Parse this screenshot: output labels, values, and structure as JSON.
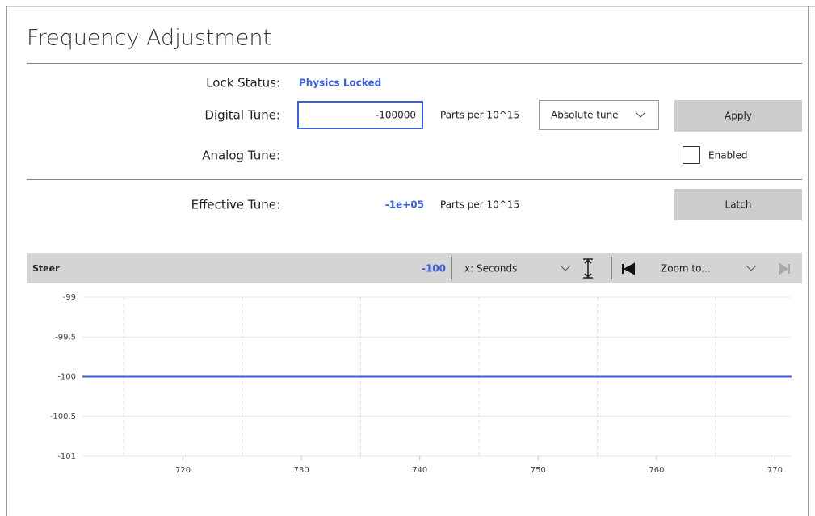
{
  "header": {
    "title": "Frequency Adjustment"
  },
  "form": {
    "lock_status": {
      "label": "Lock Status:",
      "value": "Physics Locked"
    },
    "digital_tune": {
      "label": "Digital Tune:",
      "input": "-100000",
      "unit": "Parts per 10^15",
      "mode": "Absolute tune",
      "button": "Apply"
    },
    "analog_tune": {
      "label": "Analog Tune:",
      "checkbox": "Enabled"
    },
    "effective_tune": {
      "label": "Effective Tune:",
      "value": "-1e+05",
      "unit": "Parts per 10^15",
      "button": "Latch"
    }
  },
  "chart_data": {
    "type": "line",
    "title": "Steer",
    "current_value": -100,
    "x_axis_mode": "x: Seconds",
    "zoom": "Zoom to...",
    "x": [
      711.5,
      771.4
    ],
    "series": [
      {
        "color": "#3d5fd9",
        "values": [
          -100,
          -100
        ]
      }
    ],
    "xlim": [
      711.5,
      771.4
    ],
    "xticks": [
      720,
      730,
      740,
      750,
      760,
      770
    ],
    "xminor": [
      715,
      725,
      735,
      745,
      755,
      765
    ],
    "ylim": [
      -101,
      -99
    ],
    "yticks": [
      -99,
      -99.5,
      -100,
      -100.5,
      -101
    ],
    "grid": true
  }
}
